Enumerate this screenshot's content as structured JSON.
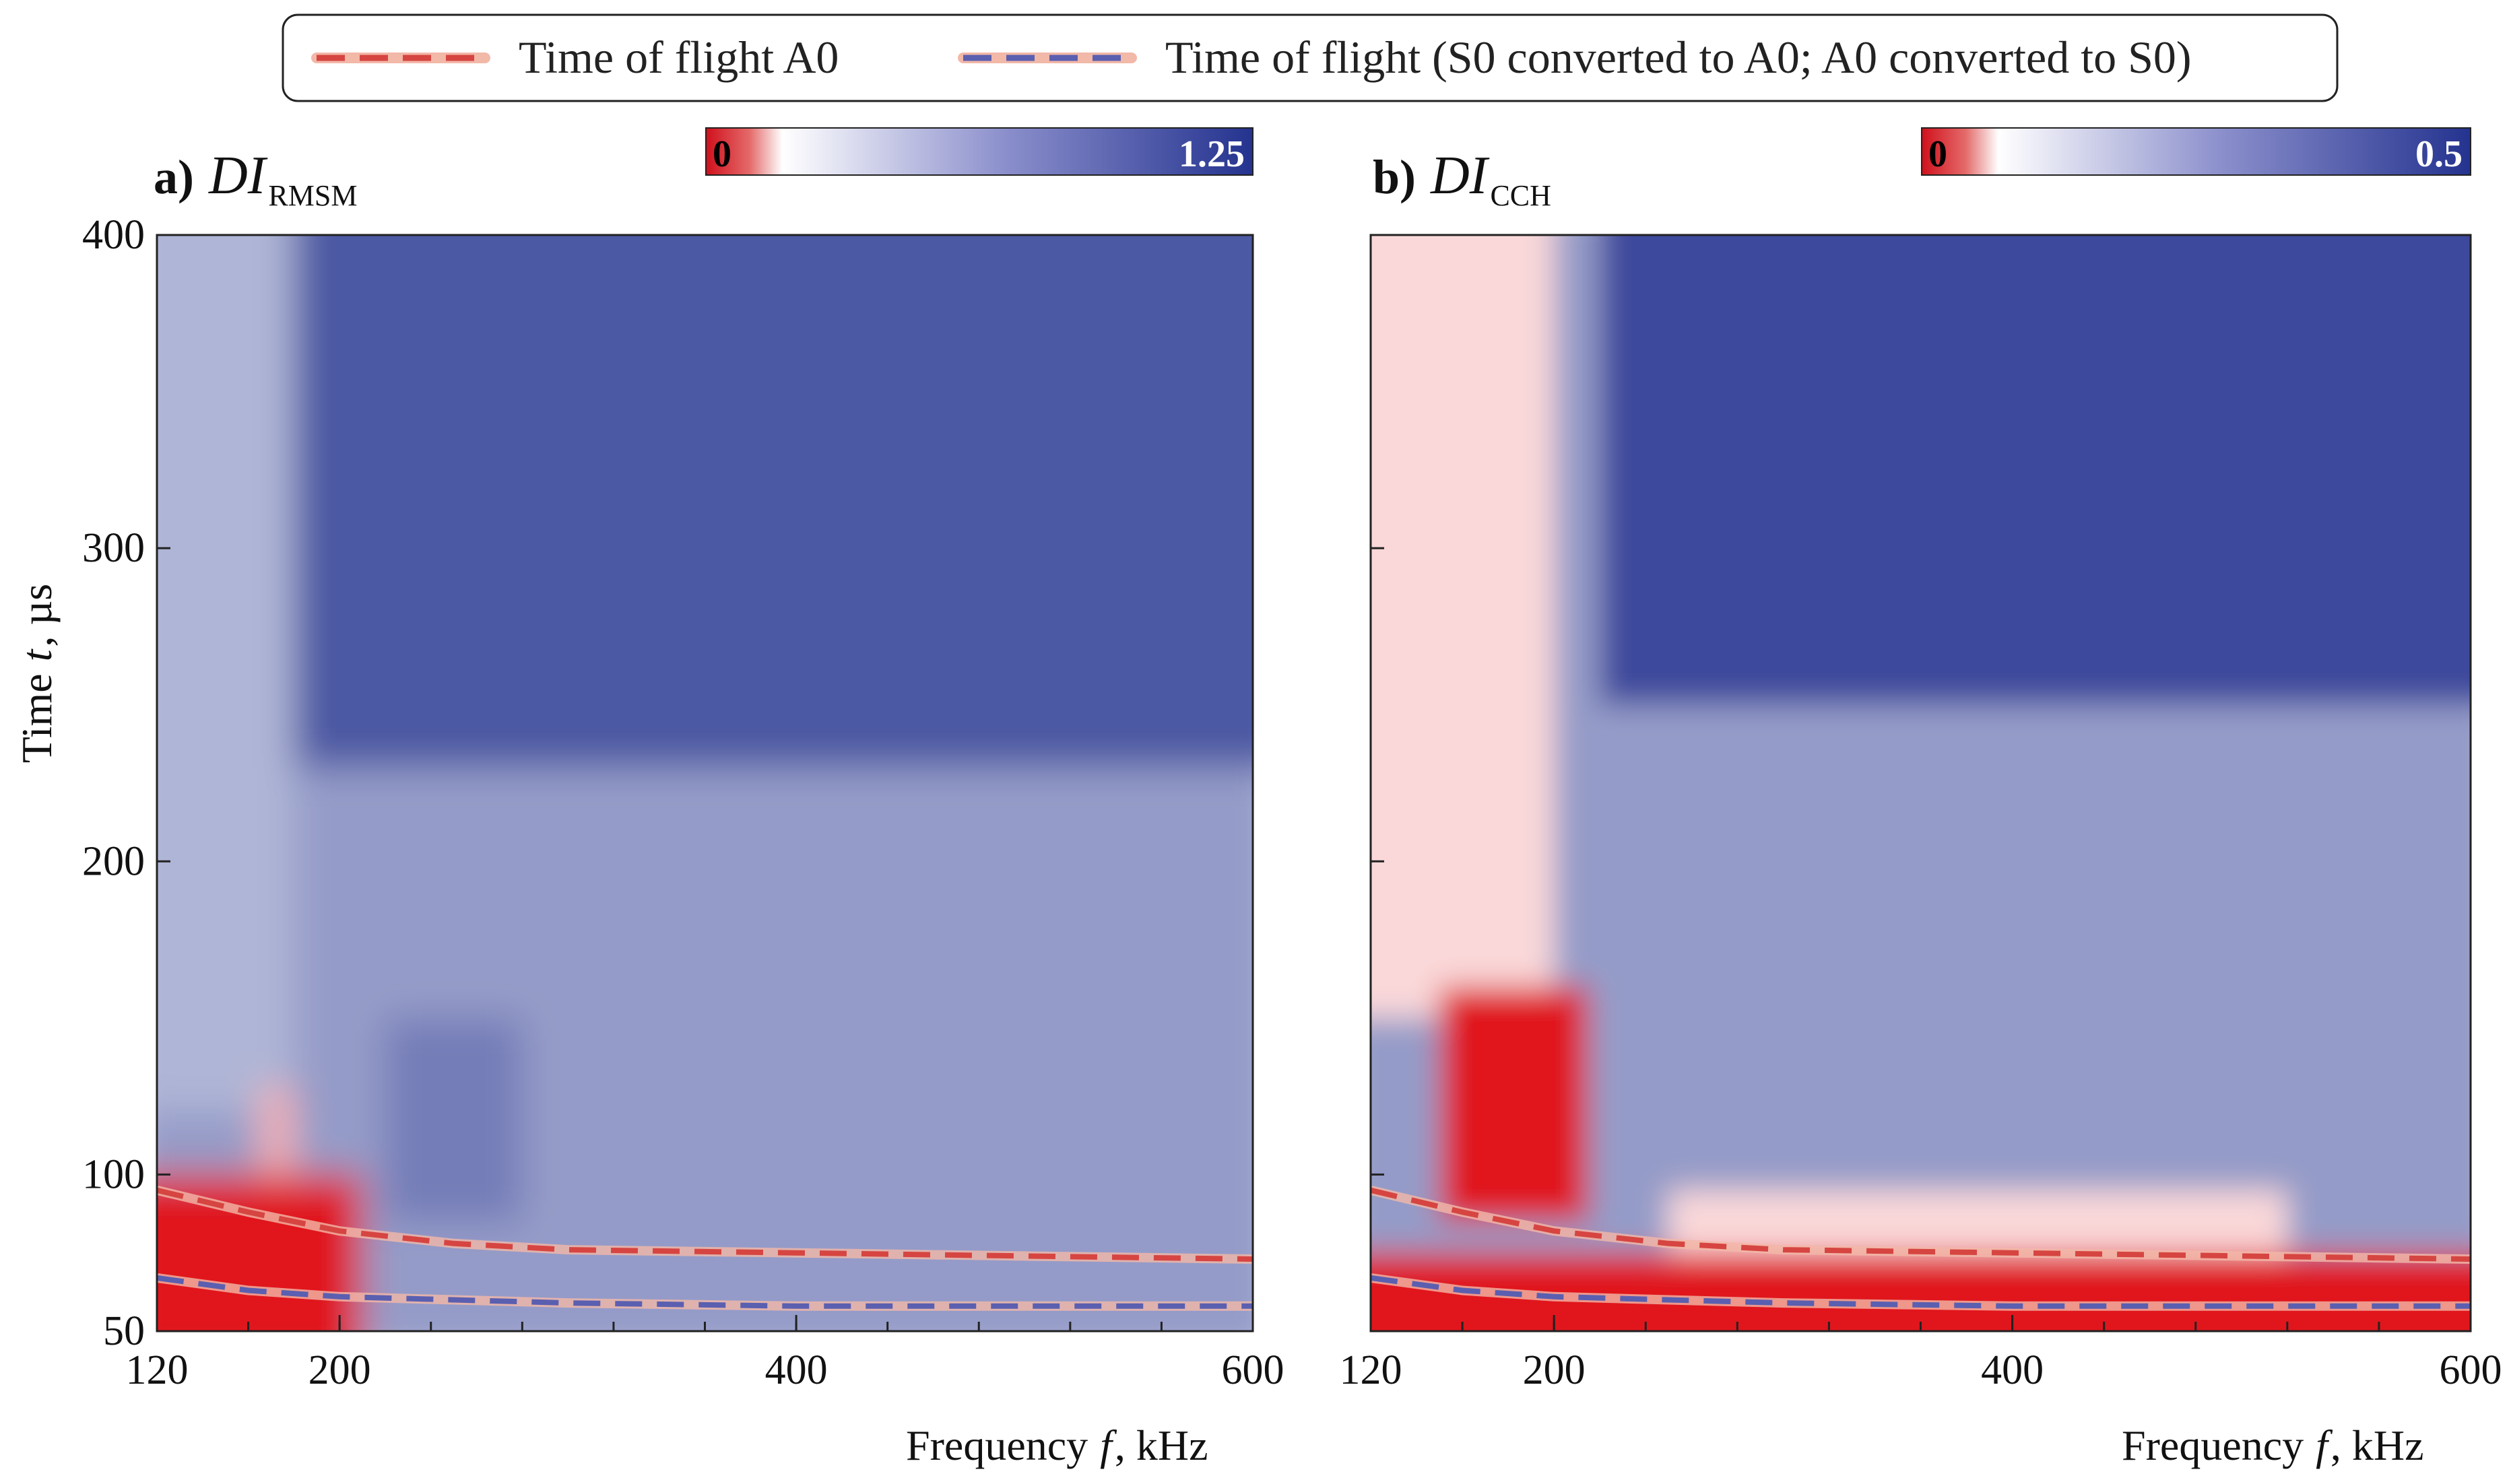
{
  "legend": {
    "items": [
      {
        "label": "Time of flight A0",
        "color": "#d64541",
        "halo": "#f2b8a8"
      },
      {
        "label": "Time of flight (S0 converted to A0; A0 converted to S0)",
        "color": "#5a5fb0",
        "halo": "#f2b8a8"
      }
    ]
  },
  "chart_data": [
    {
      "type": "heatmap",
      "panel_label": "a)",
      "title_main": "DI",
      "title_sub": "RMSM",
      "xlabel": "Frequency",
      "xlabel_var": "f",
      "xlabel_unit": ", kHz",
      "ylabel": "Time",
      "ylabel_var": "t",
      "ylabel_unit": ", µs",
      "xlim": [
        120,
        600
      ],
      "ylim": [
        50,
        400
      ],
      "xticks": [
        120,
        200,
        400,
        600
      ],
      "yticks": [
        50,
        100,
        200,
        300,
        400
      ],
      "colorbar": {
        "min": "0",
        "max": "1.25",
        "colors": [
          "#e0141c",
          "#ffffff",
          "#24338f"
        ]
      },
      "tof_A0": {
        "x": [
          120,
          160,
          200,
          250,
          300,
          400,
          500,
          600
        ],
        "y": [
          95,
          88,
          82,
          78,
          76,
          75,
          74,
          73
        ]
      },
      "tof_converted": {
        "x": [
          120,
          160,
          200,
          250,
          300,
          400,
          500,
          600
        ],
        "y": [
          67,
          63,
          61,
          60,
          59,
          58,
          58,
          58
        ]
      },
      "regions": [
        {
          "f": [
            120,
            600
          ],
          "t": [
            230,
            400
          ],
          "level": 1.05
        },
        {
          "f": [
            120,
            180
          ],
          "t": [
            120,
            400
          ],
          "level": 0.55
        },
        {
          "f": [
            220,
            280
          ],
          "t": [
            85,
            150
          ],
          "level": 0.85
        },
        {
          "f": [
            120,
            210
          ],
          "t": [
            50,
            100
          ],
          "level": 0.0
        },
        {
          "f": [
            165,
            180
          ],
          "t": [
            100,
            128
          ],
          "level": 0.1
        }
      ]
    },
    {
      "type": "heatmap",
      "panel_label": "b)",
      "title_main": "DI",
      "title_sub": "CCH",
      "xlabel": "Frequency",
      "xlabel_var": "f",
      "xlabel_unit": ", kHz",
      "ylabel": "",
      "ylabel_var": "",
      "ylabel_unit": "",
      "xlim": [
        120,
        600
      ],
      "ylim": [
        50,
        400
      ],
      "xticks": [
        120,
        200,
        400,
        600
      ],
      "yticks": [
        50,
        100,
        200,
        300,
        400
      ],
      "colorbar": {
        "min": "0",
        "max": "0.5",
        "colors": [
          "#e0141c",
          "#ffffff",
          "#24338f"
        ]
      },
      "tof_A0": {
        "x": [
          120,
          160,
          200,
          250,
          300,
          400,
          500,
          600
        ],
        "y": [
          95,
          88,
          82,
          78,
          76,
          75,
          74,
          73
        ]
      },
      "tof_converted": {
        "x": [
          120,
          160,
          200,
          250,
          300,
          400,
          500,
          600
        ],
        "y": [
          67,
          63,
          61,
          60,
          59,
          58,
          58,
          58
        ]
      },
      "regions": [
        {
          "f": [
            220,
            600
          ],
          "t": [
            250,
            400
          ],
          "level": 0.45
        },
        {
          "f": [
            120,
            200
          ],
          "t": [
            150,
            400
          ],
          "level": 0.05
        },
        {
          "f": [
            150,
            215
          ],
          "t": [
            85,
            160
          ],
          "level": 0.0
        },
        {
          "f": [
            120,
            600
          ],
          "t": [
            50,
            75
          ],
          "level": 0.0
        },
        {
          "f": [
            250,
            520
          ],
          "t": [
            75,
            95
          ],
          "level": 0.05
        }
      ]
    }
  ]
}
